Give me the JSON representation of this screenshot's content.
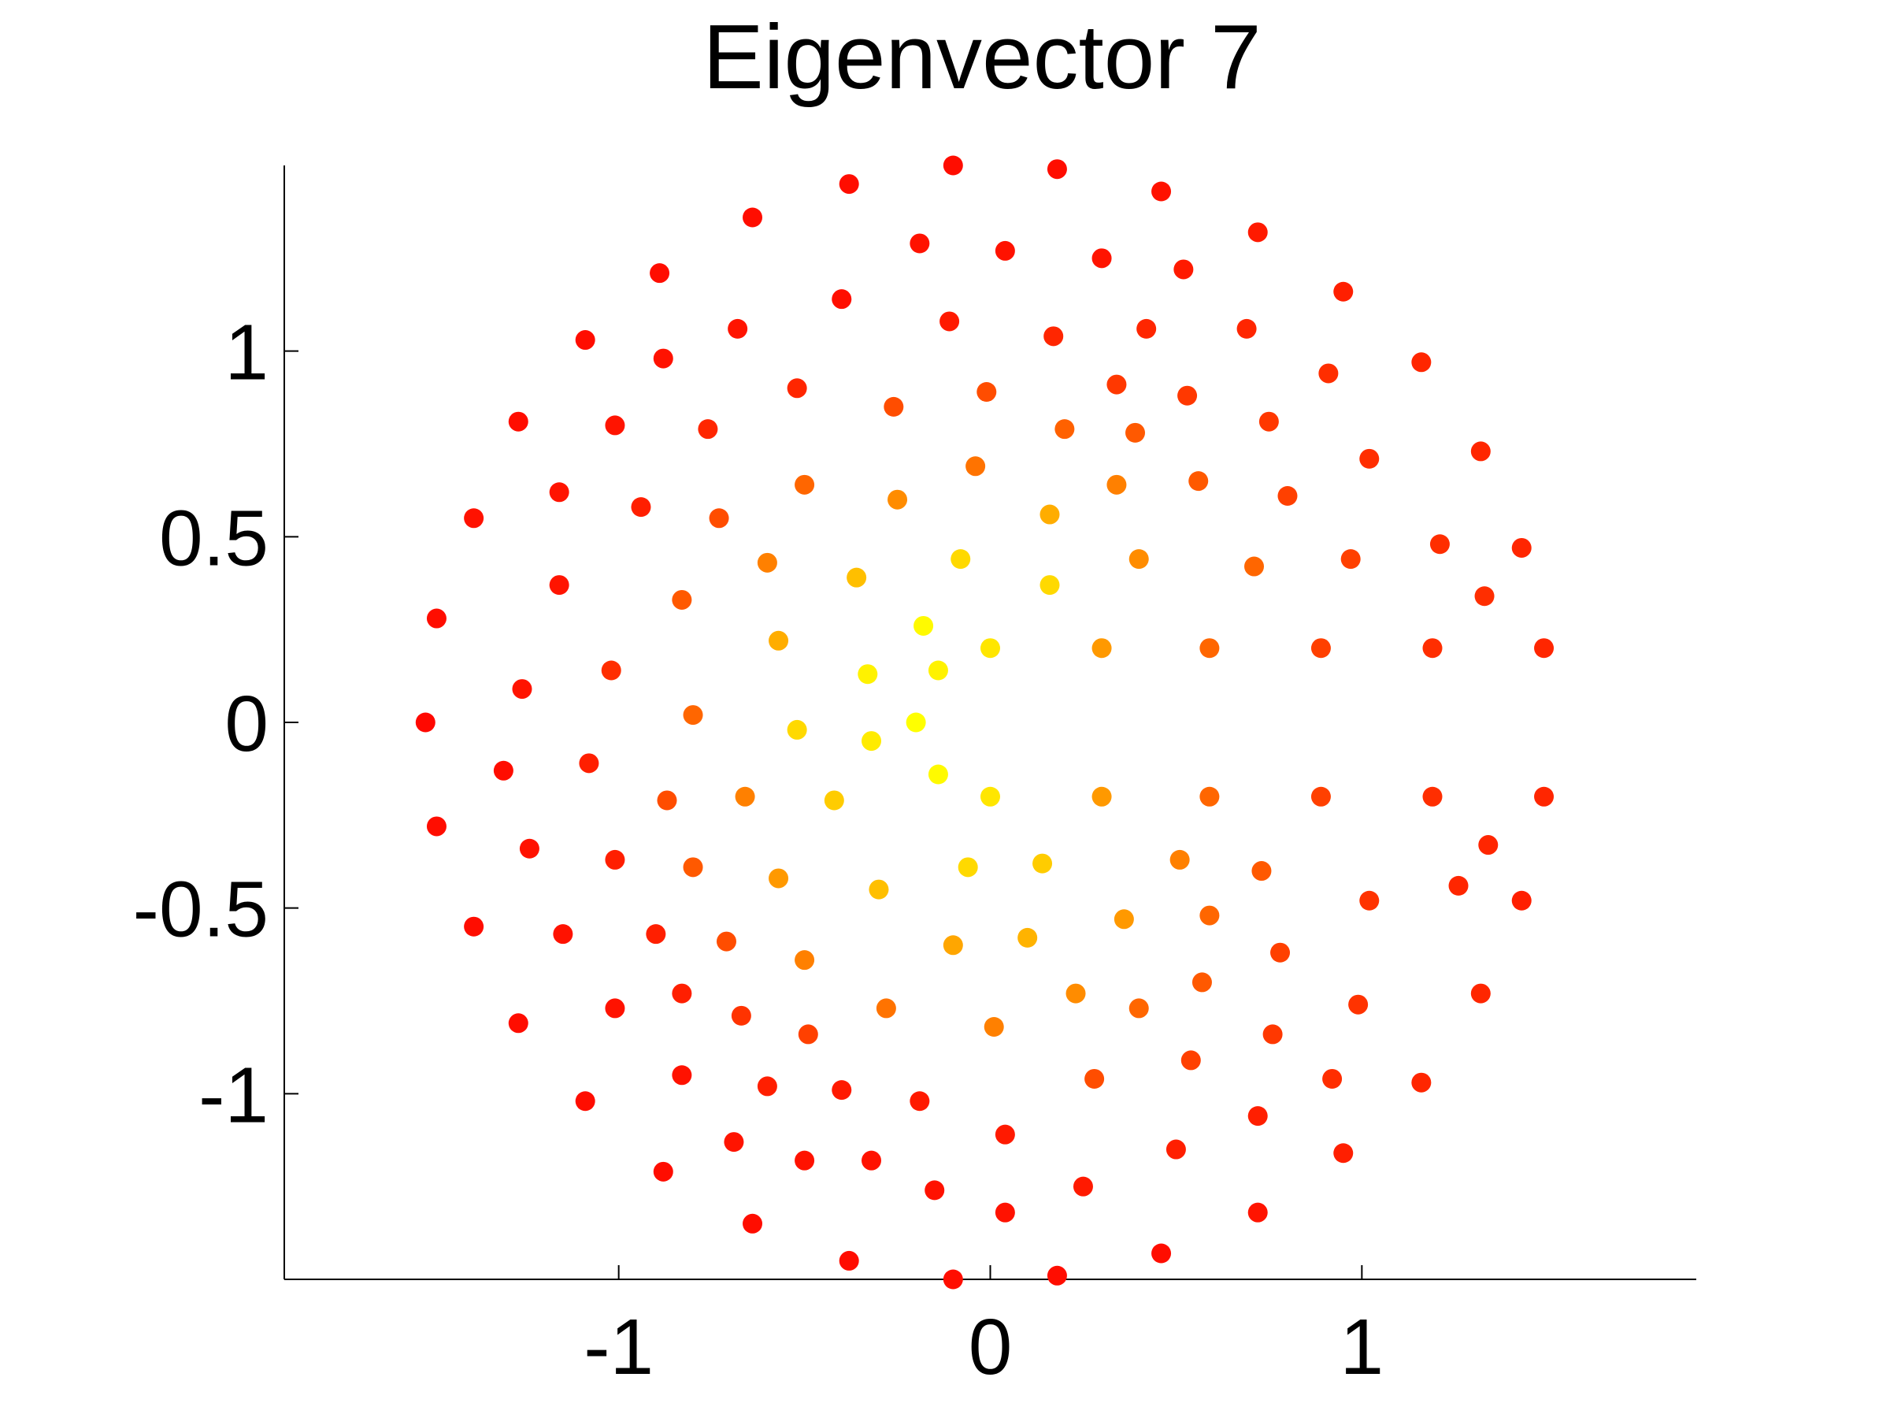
{
  "chart_data": {
    "type": "scatter",
    "title": "Eigenvector 7",
    "xlabel": "",
    "ylabel": "",
    "xlim": [
      -1.9,
      1.9
    ],
    "ylim": [
      -1.5,
      1.5
    ],
    "xticks": [
      -1,
      0,
      1
    ],
    "xtick_labels": [
      "-1",
      "0",
      "1"
    ],
    "yticks": [
      -1,
      -0.5,
      0,
      0.5,
      1
    ],
    "ytick_labels": [
      "-1",
      "-0.5",
      "0",
      "0.5",
      "1"
    ],
    "grid": false,
    "legend": "none",
    "colormap": "autumn (red low → yellow high)",
    "colors": {
      "low": "#ff0000",
      "high": "#ffff00",
      "axis": "#000000",
      "background": "#ffffff"
    },
    "points": [
      {
        "x": -0.1,
        "y": 1.5,
        "c": 0.05
      },
      {
        "x": 0.18,
        "y": 1.49,
        "c": 0.05
      },
      {
        "x": -0.38,
        "y": 1.45,
        "c": 0.05
      },
      {
        "x": 0.46,
        "y": 1.43,
        "c": 0.07
      },
      {
        "x": -0.64,
        "y": 1.36,
        "c": 0.05
      },
      {
        "x": 0.72,
        "y": 1.32,
        "c": 0.1
      },
      {
        "x": -0.19,
        "y": 1.29,
        "c": 0.07
      },
      {
        "x": 0.04,
        "y": 1.27,
        "c": 0.07
      },
      {
        "x": 0.3,
        "y": 1.25,
        "c": 0.08
      },
      {
        "x": -0.89,
        "y": 1.21,
        "c": 0.05
      },
      {
        "x": 0.52,
        "y": 1.22,
        "c": 0.1
      },
      {
        "x": 0.95,
        "y": 1.16,
        "c": 0.12
      },
      {
        "x": -0.4,
        "y": 1.14,
        "c": 0.06
      },
      {
        "x": -0.11,
        "y": 1.08,
        "c": 0.1
      },
      {
        "x": -0.68,
        "y": 1.06,
        "c": 0.08
      },
      {
        "x": 0.42,
        "y": 1.06,
        "c": 0.15
      },
      {
        "x": 0.69,
        "y": 1.06,
        "c": 0.15
      },
      {
        "x": -1.09,
        "y": 1.03,
        "c": 0.05
      },
      {
        "x": 0.17,
        "y": 1.04,
        "c": 0.15
      },
      {
        "x": -0.88,
        "y": 0.98,
        "c": 0.07
      },
      {
        "x": 1.16,
        "y": 0.97,
        "c": 0.15
      },
      {
        "x": 0.91,
        "y": 0.94,
        "c": 0.18
      },
      {
        "x": -0.52,
        "y": 0.9,
        "c": 0.15
      },
      {
        "x": 0.34,
        "y": 0.91,
        "c": 0.22
      },
      {
        "x": 0.53,
        "y": 0.88,
        "c": 0.22
      },
      {
        "x": -0.01,
        "y": 0.89,
        "c": 0.3
      },
      {
        "x": -0.26,
        "y": 0.85,
        "c": 0.3
      },
      {
        "x": -1.27,
        "y": 0.81,
        "c": 0.05
      },
      {
        "x": -1.01,
        "y": 0.8,
        "c": 0.08
      },
      {
        "x": 0.75,
        "y": 0.81,
        "c": 0.22
      },
      {
        "x": -0.76,
        "y": 0.79,
        "c": 0.15
      },
      {
        "x": 0.2,
        "y": 0.79,
        "c": 0.38
      },
      {
        "x": 0.39,
        "y": 0.78,
        "c": 0.35
      },
      {
        "x": 1.32,
        "y": 0.73,
        "c": 0.15
      },
      {
        "x": 1.02,
        "y": 0.71,
        "c": 0.18
      },
      {
        "x": -0.04,
        "y": 0.69,
        "c": 0.45
      },
      {
        "x": 0.56,
        "y": 0.65,
        "c": 0.35
      },
      {
        "x": -0.5,
        "y": 0.64,
        "c": 0.4
      },
      {
        "x": 0.34,
        "y": 0.64,
        "c": 0.5
      },
      {
        "x": -1.16,
        "y": 0.62,
        "c": 0.08
      },
      {
        "x": 0.8,
        "y": 0.61,
        "c": 0.25
      },
      {
        "x": -0.25,
        "y": 0.6,
        "c": 0.55
      },
      {
        "x": -0.94,
        "y": 0.58,
        "c": 0.12
      },
      {
        "x": 0.16,
        "y": 0.56,
        "c": 0.68
      },
      {
        "x": -0.73,
        "y": 0.55,
        "c": 0.3
      },
      {
        "x": -1.39,
        "y": 0.55,
        "c": 0.07
      },
      {
        "x": 1.21,
        "y": 0.48,
        "c": 0.18
      },
      {
        "x": 1.43,
        "y": 0.47,
        "c": 0.15
      },
      {
        "x": -0.08,
        "y": 0.44,
        "c": 0.85
      },
      {
        "x": 0.4,
        "y": 0.44,
        "c": 0.55
      },
      {
        "x": 0.97,
        "y": 0.44,
        "c": 0.25
      },
      {
        "x": -0.6,
        "y": 0.43,
        "c": 0.5
      },
      {
        "x": 0.71,
        "y": 0.42,
        "c": 0.4
      },
      {
        "x": -0.36,
        "y": 0.39,
        "c": 0.75
      },
      {
        "x": -1.16,
        "y": 0.37,
        "c": 0.08
      },
      {
        "x": 0.16,
        "y": 0.37,
        "c": 0.85
      },
      {
        "x": 1.33,
        "y": 0.34,
        "c": 0.18
      },
      {
        "x": -0.83,
        "y": 0.33,
        "c": 0.35
      },
      {
        "x": -1.49,
        "y": 0.28,
        "c": 0.05
      },
      {
        "x": -0.18,
        "y": 0.26,
        "c": 0.98
      },
      {
        "x": -0.57,
        "y": 0.22,
        "c": 0.68
      },
      {
        "x": 0.0,
        "y": 0.2,
        "c": 0.9
      },
      {
        "x": 0.3,
        "y": 0.2,
        "c": 0.6
      },
      {
        "x": 0.59,
        "y": 0.2,
        "c": 0.4
      },
      {
        "x": 0.89,
        "y": 0.2,
        "c": 0.25
      },
      {
        "x": 1.19,
        "y": 0.2,
        "c": 0.18
      },
      {
        "x": 1.49,
        "y": 0.2,
        "c": 0.15
      },
      {
        "x": -1.02,
        "y": 0.14,
        "c": 0.18
      },
      {
        "x": -0.33,
        "y": 0.13,
        "c": 0.95
      },
      {
        "x": -0.14,
        "y": 0.14,
        "c": 0.95
      },
      {
        "x": -1.26,
        "y": 0.09,
        "c": 0.08
      },
      {
        "x": -0.8,
        "y": 0.02,
        "c": 0.4
      },
      {
        "x": -1.52,
        "y": 0.0,
        "c": 0.03
      },
      {
        "x": -0.2,
        "y": 0.0,
        "c": 1.0
      },
      {
        "x": -0.52,
        "y": -0.02,
        "c": 0.85
      },
      {
        "x": -0.32,
        "y": -0.05,
        "c": 0.92
      },
      {
        "x": -1.31,
        "y": -0.13,
        "c": 0.05
      },
      {
        "x": -1.08,
        "y": -0.11,
        "c": 0.12
      },
      {
        "x": -0.14,
        "y": -0.14,
        "c": 0.98
      },
      {
        "x": -0.87,
        "y": -0.21,
        "c": 0.3
      },
      {
        "x": -0.66,
        "y": -0.2,
        "c": 0.5
      },
      {
        "x": -0.42,
        "y": -0.21,
        "c": 0.8
      },
      {
        "x": 0.0,
        "y": -0.2,
        "c": 0.9
      },
      {
        "x": 0.3,
        "y": -0.2,
        "c": 0.6
      },
      {
        "x": 0.59,
        "y": -0.2,
        "c": 0.4
      },
      {
        "x": 0.89,
        "y": -0.2,
        "c": 0.25
      },
      {
        "x": 1.19,
        "y": -0.2,
        "c": 0.18
      },
      {
        "x": 1.49,
        "y": -0.2,
        "c": 0.15
      },
      {
        "x": -1.49,
        "y": -0.28,
        "c": 0.05
      },
      {
        "x": 1.34,
        "y": -0.33,
        "c": 0.15
      },
      {
        "x": -1.24,
        "y": -0.34,
        "c": 0.07
      },
      {
        "x": -1.01,
        "y": -0.37,
        "c": 0.12
      },
      {
        "x": 0.51,
        "y": -0.37,
        "c": 0.5
      },
      {
        "x": 0.14,
        "y": -0.38,
        "c": 0.8
      },
      {
        "x": -0.06,
        "y": -0.39,
        "c": 0.85
      },
      {
        "x": -0.8,
        "y": -0.39,
        "c": 0.35
      },
      {
        "x": 0.73,
        "y": -0.4,
        "c": 0.35
      },
      {
        "x": -0.57,
        "y": -0.42,
        "c": 0.6
      },
      {
        "x": -0.3,
        "y": -0.45,
        "c": 0.75
      },
      {
        "x": 1.26,
        "y": -0.44,
        "c": 0.15
      },
      {
        "x": 1.02,
        "y": -0.48,
        "c": 0.2
      },
      {
        "x": 1.43,
        "y": -0.48,
        "c": 0.12
      },
      {
        "x": 0.36,
        "y": -0.53,
        "c": 0.6
      },
      {
        "x": 0.59,
        "y": -0.52,
        "c": 0.4
      },
      {
        "x": -1.39,
        "y": -0.55,
        "c": 0.05
      },
      {
        "x": -1.15,
        "y": -0.57,
        "c": 0.07
      },
      {
        "x": -0.9,
        "y": -0.57,
        "c": 0.12
      },
      {
        "x": 0.1,
        "y": -0.58,
        "c": 0.7
      },
      {
        "x": -0.71,
        "y": -0.59,
        "c": 0.3
      },
      {
        "x": -0.1,
        "y": -0.6,
        "c": 0.65
      },
      {
        "x": 0.78,
        "y": -0.62,
        "c": 0.25
      },
      {
        "x": -0.5,
        "y": -0.64,
        "c": 0.5
      },
      {
        "x": 0.57,
        "y": -0.7,
        "c": 0.35
      },
      {
        "x": -0.83,
        "y": -0.73,
        "c": 0.12
      },
      {
        "x": 0.23,
        "y": -0.73,
        "c": 0.55
      },
      {
        "x": 1.32,
        "y": -0.73,
        "c": 0.15
      },
      {
        "x": 0.99,
        "y": -0.76,
        "c": 0.2
      },
      {
        "x": -1.01,
        "y": -0.77,
        "c": 0.07
      },
      {
        "x": -0.28,
        "y": -0.77,
        "c": 0.45
      },
      {
        "x": 0.4,
        "y": -0.77,
        "c": 0.4
      },
      {
        "x": -0.67,
        "y": -0.79,
        "c": 0.2
      },
      {
        "x": -1.27,
        "y": -0.81,
        "c": 0.05
      },
      {
        "x": 0.01,
        "y": -0.82,
        "c": 0.5
      },
      {
        "x": -0.49,
        "y": -0.84,
        "c": 0.25
      },
      {
        "x": 0.76,
        "y": -0.84,
        "c": 0.22
      },
      {
        "x": 0.54,
        "y": -0.91,
        "c": 0.25
      },
      {
        "x": -0.83,
        "y": -0.95,
        "c": 0.07
      },
      {
        "x": 0.92,
        "y": -0.96,
        "c": 0.18
      },
      {
        "x": 0.28,
        "y": -0.96,
        "c": 0.3
      },
      {
        "x": 1.16,
        "y": -0.97,
        "c": 0.15
      },
      {
        "x": -0.6,
        "y": -0.98,
        "c": 0.12
      },
      {
        "x": -0.4,
        "y": -0.99,
        "c": 0.1
      },
      {
        "x": -1.09,
        "y": -1.02,
        "c": 0.05
      },
      {
        "x": -0.19,
        "y": -1.02,
        "c": 0.1
      },
      {
        "x": 0.72,
        "y": -1.06,
        "c": 0.12
      },
      {
        "x": 0.04,
        "y": -1.11,
        "c": 0.1
      },
      {
        "x": -0.69,
        "y": -1.13,
        "c": 0.08
      },
      {
        "x": 0.5,
        "y": -1.15,
        "c": 0.12
      },
      {
        "x": 0.95,
        "y": -1.16,
        "c": 0.12
      },
      {
        "x": -0.5,
        "y": -1.18,
        "c": 0.07
      },
      {
        "x": -0.32,
        "y": -1.18,
        "c": 0.07
      },
      {
        "x": -0.88,
        "y": -1.21,
        "c": 0.05
      },
      {
        "x": 0.25,
        "y": -1.25,
        "c": 0.1
      },
      {
        "x": -0.15,
        "y": -1.26,
        "c": 0.07
      },
      {
        "x": 0.72,
        "y": -1.32,
        "c": 0.08
      },
      {
        "x": 0.04,
        "y": -1.32,
        "c": 0.07
      },
      {
        "x": -0.64,
        "y": -1.35,
        "c": 0.05
      },
      {
        "x": 0.46,
        "y": -1.43,
        "c": 0.05
      },
      {
        "x": -0.38,
        "y": -1.45,
        "c": 0.05
      },
      {
        "x": 0.18,
        "y": -1.49,
        "c": 0.05
      },
      {
        "x": -0.1,
        "y": -1.5,
        "c": 0.05
      }
    ]
  }
}
